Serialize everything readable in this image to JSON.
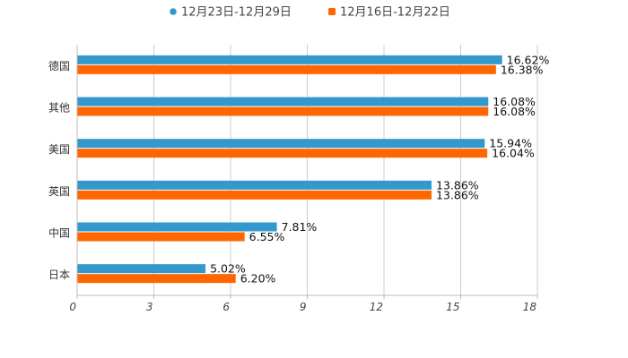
{
  "chart_data": {
    "type": "bar",
    "orientation": "horizontal",
    "title": "",
    "xlabel": "",
    "ylabel": "",
    "categories": [
      "德国",
      "其他",
      "美国",
      "英国",
      "中国",
      "日本"
    ],
    "series": [
      {
        "name": "12月23日-12月29日",
        "color": "#3399cc",
        "values": [
          16.62,
          16.08,
          15.94,
          13.86,
          7.81,
          5.02
        ],
        "labels": [
          "16.62%",
          "16.08%",
          "15.94%",
          "13.86%",
          "7.81%",
          "5.02%"
        ]
      },
      {
        "name": "12月16日-12月22日",
        "color": "#ff6600",
        "values": [
          16.38,
          16.08,
          16.04,
          13.86,
          6.55,
          6.2
        ],
        "labels": [
          "16.38%",
          "16.08%",
          "16.04%",
          "13.86%",
          "6.55%",
          "6.20%"
        ]
      }
    ],
    "xlim": [
      0,
      18
    ],
    "xticks": [
      0,
      3,
      6,
      9,
      12,
      15,
      18
    ],
    "xtick_labels": [
      "0",
      "3",
      "6",
      "9",
      "12",
      "15",
      "18"
    ],
    "grid": "vertical",
    "legend": "top-center"
  }
}
